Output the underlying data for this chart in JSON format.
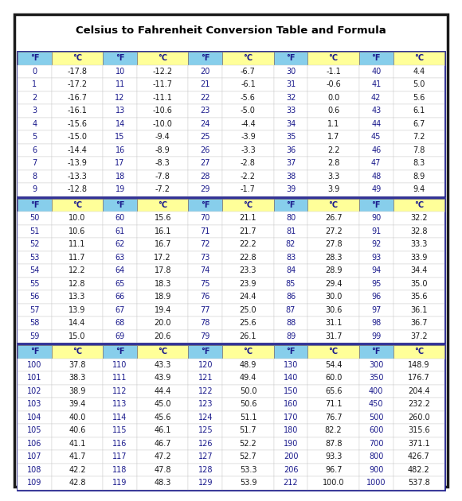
{
  "title": "Celsius to Fahrenheit Conversion Table and Formula",
  "header_bg_F": "#87CEEB",
  "header_bg_C": "#FFFF99",
  "header_text_color": "#1a1a8c",
  "cell_color_F": "#1a1a8c",
  "cell_color_C": "#1a1a1a",
  "border_color_outer": "#1a1a1a",
  "border_color_section": "#1a1a8c",
  "section1": {
    "headers": [
      "°F",
      "°C",
      "°F",
      "°C",
      "°F",
      "°C",
      "°F",
      "°C",
      "°F",
      "°C"
    ],
    "rows": [
      [
        "0",
        "-17.8",
        "10",
        "-12.2",
        "20",
        "-6.7",
        "30",
        "-1.1",
        "40",
        "4.4"
      ],
      [
        "1",
        "-17.2",
        "11",
        "-11.7",
        "21",
        "-6.1",
        "31",
        "-0.6",
        "41",
        "5.0"
      ],
      [
        "2",
        "-16.7",
        "12",
        "-11.1",
        "22",
        "-5.6",
        "32",
        "0.0",
        "42",
        "5.6"
      ],
      [
        "3",
        "-16.1",
        "13",
        "-10.6",
        "23",
        "-5.0",
        "33",
        "0.6",
        "43",
        "6.1"
      ],
      [
        "4",
        "-15.6",
        "14",
        "-10.0",
        "24",
        "-4.4",
        "34",
        "1.1",
        "44",
        "6.7"
      ],
      [
        "5",
        "-15.0",
        "15",
        "-9.4",
        "25",
        "-3.9",
        "35",
        "1.7",
        "45",
        "7.2"
      ],
      [
        "6",
        "-14.4",
        "16",
        "-8.9",
        "26",
        "-3.3",
        "36",
        "2.2",
        "46",
        "7.8"
      ],
      [
        "7",
        "-13.9",
        "17",
        "-8.3",
        "27",
        "-2.8",
        "37",
        "2.8",
        "47",
        "8.3"
      ],
      [
        "8",
        "-13.3",
        "18",
        "-7.8",
        "28",
        "-2.2",
        "38",
        "3.3",
        "48",
        "8.9"
      ],
      [
        "9",
        "-12.8",
        "19",
        "-7.2",
        "29",
        "-1.7",
        "39",
        "3.9",
        "49",
        "9.4"
      ]
    ]
  },
  "section2": {
    "headers": [
      "°F",
      "°C",
      "°F",
      "°C",
      "°F",
      "°C",
      "°F",
      "°C",
      "°F",
      "°C"
    ],
    "rows": [
      [
        "50",
        "10.0",
        "60",
        "15.6",
        "70",
        "21.1",
        "80",
        "26.7",
        "90",
        "32.2"
      ],
      [
        "51",
        "10.6",
        "61",
        "16.1",
        "71",
        "21.7",
        "81",
        "27.2",
        "91",
        "32.8"
      ],
      [
        "52",
        "11.1",
        "62",
        "16.7",
        "72",
        "22.2",
        "82",
        "27.8",
        "92",
        "33.3"
      ],
      [
        "53",
        "11.7",
        "63",
        "17.2",
        "73",
        "22.8",
        "83",
        "28.3",
        "93",
        "33.9"
      ],
      [
        "54",
        "12.2",
        "64",
        "17.8",
        "74",
        "23.3",
        "84",
        "28.9",
        "94",
        "34.4"
      ],
      [
        "55",
        "12.8",
        "65",
        "18.3",
        "75",
        "23.9",
        "85",
        "29.4",
        "95",
        "35.0"
      ],
      [
        "56",
        "13.3",
        "66",
        "18.9",
        "76",
        "24.4",
        "86",
        "30.0",
        "96",
        "35.6"
      ],
      [
        "57",
        "13.9",
        "67",
        "19.4",
        "77",
        "25.0",
        "87",
        "30.6",
        "97",
        "36.1"
      ],
      [
        "58",
        "14.4",
        "68",
        "20.0",
        "78",
        "25.6",
        "88",
        "31.1",
        "98",
        "36.7"
      ],
      [
        "59",
        "15.0",
        "69",
        "20.6",
        "79",
        "26.1",
        "89",
        "31.7",
        "99",
        "37.2"
      ]
    ]
  },
  "section3": {
    "headers": [
      "°F",
      "°C",
      "°F",
      "°C",
      "°F",
      "°C",
      "°F",
      "°C",
      "°F",
      "°C"
    ],
    "rows": [
      [
        "100",
        "37.8",
        "110",
        "43.3",
        "120",
        "48.9",
        "130",
        "54.4",
        "300",
        "148.9"
      ],
      [
        "101",
        "38.3",
        "111",
        "43.9",
        "121",
        "49.4",
        "140",
        "60.0",
        "350",
        "176.7"
      ],
      [
        "102",
        "38.9",
        "112",
        "44.4",
        "122",
        "50.0",
        "150",
        "65.6",
        "400",
        "204.4"
      ],
      [
        "103",
        "39.4",
        "113",
        "45.0",
        "123",
        "50.6",
        "160",
        "71.1",
        "450",
        "232.2"
      ],
      [
        "104",
        "40.0",
        "114",
        "45.6",
        "124",
        "51.1",
        "170",
        "76.7",
        "500",
        "260.0"
      ],
      [
        "105",
        "40.6",
        "115",
        "46.1",
        "125",
        "51.7",
        "180",
        "82.2",
        "600",
        "315.6"
      ],
      [
        "106",
        "41.1",
        "116",
        "46.7",
        "126",
        "52.2",
        "190",
        "87.8",
        "700",
        "371.1"
      ],
      [
        "107",
        "41.7",
        "117",
        "47.2",
        "127",
        "52.7",
        "200",
        "93.3",
        "800",
        "426.7"
      ],
      [
        "108",
        "42.2",
        "118",
        "47.8",
        "128",
        "53.3",
        "206",
        "96.7",
        "900",
        "482.2"
      ],
      [
        "109",
        "42.8",
        "119",
        "48.3",
        "129",
        "53.9",
        "212",
        "100.0",
        "1000",
        "537.8"
      ]
    ]
  }
}
